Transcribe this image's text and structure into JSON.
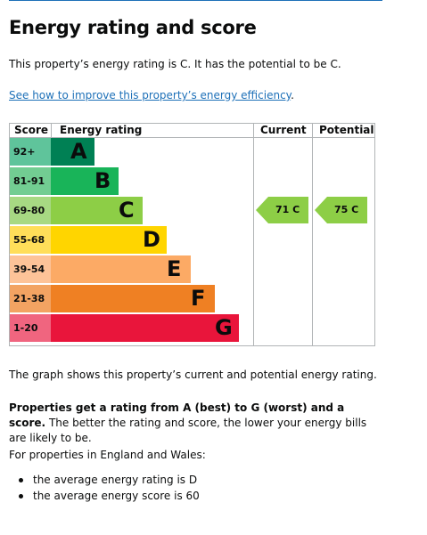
{
  "page": {
    "title": "Energy rating and score",
    "intro": "This property’s energy rating is C. It has the potential to be C.",
    "improve_link": "See how to improve this property’s energy efficiency",
    "improve_link_period": "."
  },
  "chart_data": {
    "type": "table",
    "headers": {
      "score": "Score",
      "rating": "Energy rating",
      "current": "Current",
      "potential": "Potential"
    },
    "bands": [
      {
        "score": "92+",
        "letter": "A",
        "color": "#008054",
        "score_bg": "#5fc49b"
      },
      {
        "score": "81-91",
        "letter": "B",
        "color": "#19b459",
        "score_bg": "#72cd92"
      },
      {
        "score": "69-80",
        "letter": "C",
        "color": "#8dce46",
        "score_bg": "#a7d983"
      },
      {
        "score": "55-68",
        "letter": "D",
        "color": "#ffd500",
        "score_bg": "#ffde59"
      },
      {
        "score": "39-54",
        "letter": "E",
        "color": "#fcaa65",
        "score_bg": "#fdc398"
      },
      {
        "score": "21-38",
        "letter": "F",
        "color": "#ef8023",
        "score_bg": "#f2a362"
      },
      {
        "score": "1-20",
        "letter": "G",
        "color": "#e9153b",
        "score_bg": "#f0657f"
      }
    ],
    "current": {
      "score": 71,
      "letter": "C",
      "label": "71 C",
      "band": "C"
    },
    "potential": {
      "score": 75,
      "letter": "C",
      "label": "75 C",
      "band": "C"
    }
  },
  "text": {
    "graph_desc": "The graph shows this property’s current and potential energy rating.",
    "rating_bold": "Properties get a rating from A (best) to G (worst) and a score.",
    "rating_rest": " The better the rating and score, the lower your energy bills are likely to be.",
    "england_wales": "For properties in England and Wales:",
    "bullets": [
      "the average energy rating is D",
      "the average energy score is 60"
    ]
  }
}
